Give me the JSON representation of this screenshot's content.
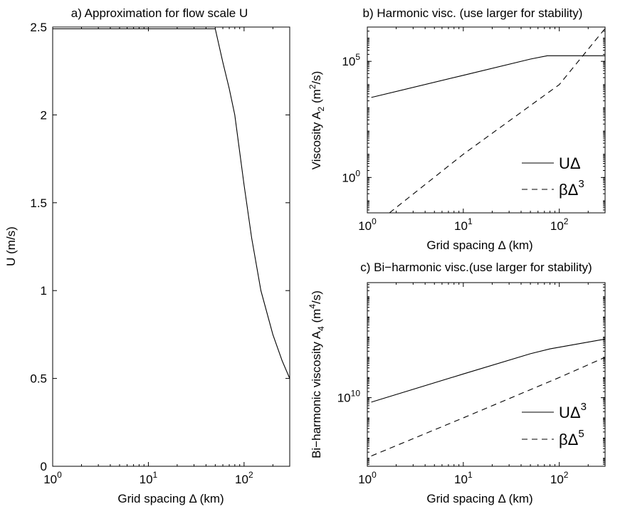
{
  "chart_data": [
    {
      "id": "a",
      "type": "line",
      "title": "a) Approximation for flow scale U",
      "xlabel": "Grid spacing Δ (km)",
      "ylabel": "U (m/s)",
      "xscale": "log",
      "yscale": "linear",
      "xlim": [
        1,
        300
      ],
      "ylim": [
        0,
        2.5
      ],
      "xticks": [
        {
          "value": 1,
          "mant": "10",
          "exp": "0"
        },
        {
          "value": 10,
          "mant": "10",
          "exp": "1"
        },
        {
          "value": 100,
          "mant": "10",
          "exp": "2"
        }
      ],
      "yticks": [
        {
          "value": 0,
          "label": "0"
        },
        {
          "value": 0.5,
          "label": "0.5"
        },
        {
          "value": 1,
          "label": "1"
        },
        {
          "value": 1.5,
          "label": "1.5"
        },
        {
          "value": 2,
          "label": "2"
        },
        {
          "value": 2.5,
          "label": "2.5"
        }
      ],
      "series": [
        {
          "style": "solid",
          "x": [
            1,
            10,
            50,
            60,
            70,
            80,
            100,
            120,
            150,
            200,
            250,
            300
          ],
          "y": [
            2.49,
            2.49,
            2.49,
            2.3,
            2.15,
            2.0,
            1.6,
            1.3,
            1.0,
            0.75,
            0.6,
            0.5
          ]
        }
      ],
      "legend": null
    },
    {
      "id": "b",
      "type": "line",
      "title": "b) Harmonic visc. (use larger for stability)",
      "xlabel": "Grid spacing Δ (km)",
      "ylabel": {
        "pre": "Viscosity A",
        "sub": "2",
        "mid": " (m",
        "sup": "2",
        "post": "/s)"
      },
      "xscale": "log",
      "yscale": "log",
      "xlim": [
        1,
        300
      ],
      "ylim": [
        0.03,
        3000000
      ],
      "xticks": [
        {
          "value": 1,
          "mant": "10",
          "exp": "0"
        },
        {
          "value": 10,
          "mant": "10",
          "exp": "1"
        },
        {
          "value": 100,
          "mant": "10",
          "exp": "2"
        }
      ],
      "yticks": [
        {
          "value": 1,
          "mant": "10",
          "exp": "0"
        },
        {
          "value": 100000,
          "mant": "10",
          "exp": "5"
        }
      ],
      "series": [
        {
          "style": "solid",
          "legend_main": "UΔ",
          "legend_sup": "",
          "x": [
            1.1,
            10,
            50,
            75,
            300
          ],
          "y": [
            2800,
            25000,
            125000,
            175000,
            175000
          ]
        },
        {
          "style": "dashed",
          "legend_main": "βΔ",
          "legend_sup": "3",
          "x": [
            1.7,
            10,
            100,
            300
          ],
          "y": [
            0.03,
            10,
            10000,
            2600000
          ]
        }
      ],
      "legend": "lower-right"
    },
    {
      "id": "c",
      "type": "line",
      "title": "c) Bi−harmonic visc.(use larger for stability)",
      "xlabel": "Grid spacing Δ (km)",
      "ylabel": {
        "pre": "Bi−harmonic viscosity A",
        "sub": "4",
        "mid": " (m",
        "sup": "4",
        "post": "/s)"
      },
      "xscale": "log",
      "yscale": "log",
      "xlim": [
        1,
        300
      ],
      "ylim": [
        4000000,
        5000000000000000
      ],
      "xticks": [
        {
          "value": 1,
          "mant": "10",
          "exp": "0"
        },
        {
          "value": 10,
          "mant": "10",
          "exp": "1"
        },
        {
          "value": 100,
          "mant": "10",
          "exp": "2"
        }
      ],
      "yticks": [
        {
          "value": 10000000000,
          "mant": "10",
          "exp": "10"
        }
      ],
      "series": [
        {
          "style": "solid",
          "legend_main": "UΔ",
          "legend_sup": "3",
          "x": [
            1.1,
            10,
            50,
            80,
            300
          ],
          "y": [
            6000000000,
            150000000000,
            1500000000000,
            2600000000000,
            8000000000000
          ]
        },
        {
          "style": "dashed",
          "legend_main": "βΔ",
          "legend_sup": "5",
          "x": [
            1.1,
            10,
            100,
            300
          ],
          "y": [
            13000000,
            1000000000,
            100000000000,
            1000000000000
          ]
        }
      ],
      "legend": "lower-right"
    }
  ]
}
